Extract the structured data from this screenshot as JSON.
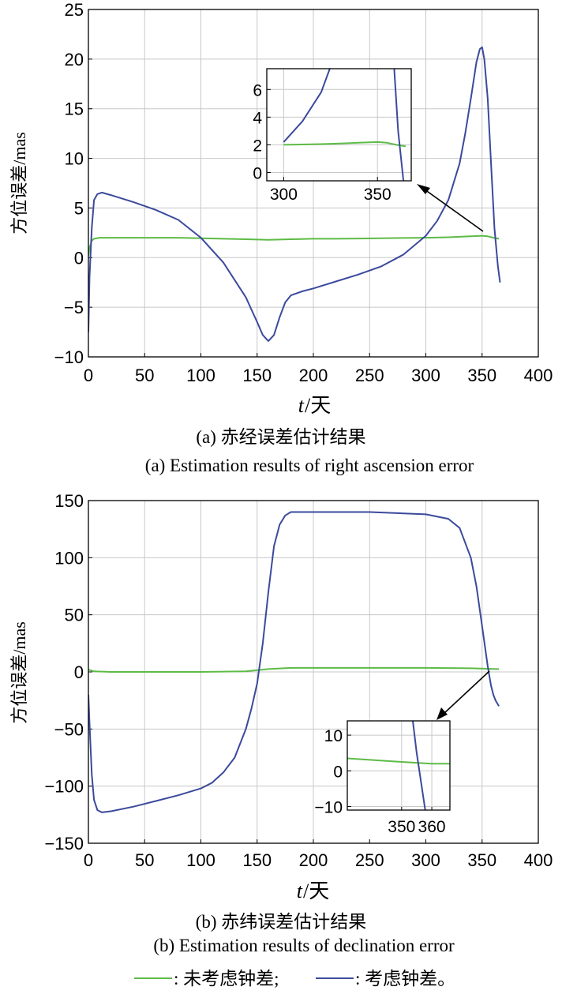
{
  "colors": {
    "no_clock": "#5dbb46",
    "clock": "#3b4a9c"
  },
  "chart_data": [
    {
      "id": "a",
      "type": "line",
      "caption_cn": "(a) 赤经误差估计结果",
      "caption_en": "(a) Estimation results of right ascension error",
      "ylabel": "方位误差/mas",
      "xlabel_t": "t",
      "xlabel_rest": "/天",
      "xlim": [
        0,
        400
      ],
      "ylim": [
        -10,
        25
      ],
      "xticks": [
        0,
        50,
        100,
        150,
        200,
        250,
        300,
        350,
        400
      ],
      "yticks": [
        -10,
        -5,
        0,
        5,
        10,
        15,
        20,
        25
      ],
      "grid": true,
      "series": [
        {
          "key": "no_clock",
          "x": [
            0,
            1,
            3,
            5,
            10,
            20,
            40,
            60,
            80,
            100,
            120,
            140,
            160,
            180,
            200,
            220,
            240,
            260,
            280,
            300,
            320,
            330,
            340,
            350,
            355,
            360,
            365
          ],
          "y": [
            0.2,
            1.0,
            1.7,
            1.9,
            2.0,
            2.0,
            2.0,
            2.0,
            2.0,
            1.95,
            1.9,
            1.85,
            1.8,
            1.85,
            1.9,
            1.9,
            1.92,
            1.95,
            1.98,
            2.0,
            2.05,
            2.1,
            2.15,
            2.2,
            2.15,
            2.0,
            1.9
          ]
        },
        {
          "key": "clock",
          "x": [
            0,
            1,
            3,
            5,
            8,
            12,
            20,
            40,
            60,
            80,
            100,
            120,
            140,
            150,
            155,
            160,
            165,
            170,
            175,
            180,
            190,
            200,
            220,
            240,
            260,
            280,
            300,
            310,
            320,
            330,
            335,
            340,
            345,
            348,
            350,
            352,
            355,
            358,
            361,
            364,
            366
          ],
          "y": [
            -7.5,
            -2,
            3,
            5.8,
            6.4,
            6.55,
            6.3,
            5.6,
            4.8,
            3.8,
            2.0,
            -0.5,
            -4.0,
            -6.5,
            -7.8,
            -8.4,
            -7.8,
            -6.0,
            -4.5,
            -3.8,
            -3.4,
            -3.1,
            -2.4,
            -1.7,
            -0.9,
            0.3,
            2.2,
            3.7,
            5.8,
            9.5,
            12.5,
            16.0,
            19.7,
            21.0,
            21.2,
            20.0,
            16.0,
            9.5,
            3.0,
            -0.8,
            -2.5
          ]
        }
      ],
      "inset": {
        "xlim": [
          291,
          368
        ],
        "ylim": [
          -0.6,
          7.5
        ],
        "xticks": [
          300,
          350
        ],
        "yticks": [
          0,
          2,
          4,
          6
        ]
      }
    },
    {
      "id": "b",
      "type": "line",
      "caption_cn": "(b) 赤纬误差估计结果",
      "caption_en": "(b) Estimation results of declination error",
      "ylabel": "方位误差/mas",
      "xlabel_t": "t",
      "xlabel_rest": "/天",
      "xlim": [
        0,
        400
      ],
      "ylim": [
        -150,
        150
      ],
      "xticks": [
        0,
        50,
        100,
        150,
        200,
        250,
        300,
        350,
        400
      ],
      "yticks": [
        -150,
        -100,
        -50,
        0,
        50,
        100,
        150
      ],
      "grid": true,
      "series": [
        {
          "key": "no_clock",
          "x": [
            0,
            5,
            20,
            50,
            100,
            140,
            160,
            180,
            200,
            250,
            300,
            340,
            360,
            365
          ],
          "y": [
            2,
            0.5,
            0,
            0,
            0,
            0.5,
            2.5,
            3.5,
            3.5,
            3.5,
            3.5,
            3.2,
            2.6,
            2.5
          ],
          "inset_y": [
            3.5,
            2.5,
            2.0,
            2.0
          ]
        },
        {
          "key": "clock",
          "x": [
            0,
            1,
            3,
            5,
            8,
            12,
            20,
            40,
            60,
            80,
            100,
            110,
            120,
            130,
            140,
            145,
            150,
            155,
            160,
            165,
            170,
            175,
            180,
            185,
            190,
            200,
            250,
            300,
            320,
            330,
            340,
            345,
            350,
            355,
            358,
            360,
            362,
            365
          ],
          "y": [
            -20,
            -45,
            -90,
            -112,
            -121,
            -123,
            -122,
            -118,
            -113,
            -108,
            -102,
            -97,
            -88,
            -75,
            -50,
            -32,
            -10,
            25,
            70,
            110,
            129,
            137,
            140,
            140,
            140,
            140,
            140,
            138,
            134,
            126,
            100,
            75,
            40,
            5,
            -12,
            -20,
            -25,
            -30
          ]
        }
      ],
      "inset": {
        "xlim": [
          332,
          366
        ],
        "ylim": [
          -11,
          14
        ],
        "xticks": [
          350,
          360
        ],
        "yticks": [
          -10,
          0,
          10
        ]
      }
    }
  ],
  "legend": [
    {
      "key": "no_clock",
      "label": ": 未考虑钟差;"
    },
    {
      "key": "clock",
      "label": ": 考虑钟差。"
    }
  ]
}
